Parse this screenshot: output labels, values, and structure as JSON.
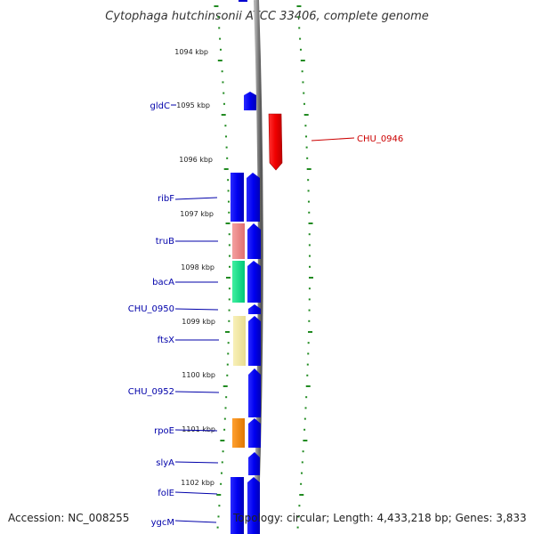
{
  "title": "Cytophaga hutchinsonii ATCC 33406, complete genome",
  "footer": {
    "accession": "Accession: NC_008255",
    "topology": "Topology: circular; Length: 4,433,218 bp; Genes: 3,833"
  },
  "colors": {
    "forward_strand": "#0000ff",
    "reverse_strand": "#ff0000",
    "tick": "#228b22",
    "label_blue": "#0000aa",
    "label_red": "#cc0000",
    "backbone": "#888888"
  },
  "ticks": [
    {
      "label": "1094 kbp"
    },
    {
      "label": "1095 kbp"
    },
    {
      "label": "1096 kbp"
    },
    {
      "label": "1097 kbp"
    },
    {
      "label": "1098 kbp"
    },
    {
      "label": "1099 kbp"
    },
    {
      "label": "1100 kbp"
    },
    {
      "label": "1101 kbp"
    },
    {
      "label": "1102 kbp"
    }
  ],
  "gene_labels": [
    {
      "name": "gldC",
      "strand": "forward"
    },
    {
      "name": "CHU_0946",
      "strand": "reverse"
    },
    {
      "name": "ribF",
      "strand": "forward"
    },
    {
      "name": "truB",
      "strand": "forward"
    },
    {
      "name": "bacA",
      "strand": "forward"
    },
    {
      "name": "CHU_0950",
      "strand": "forward"
    },
    {
      "name": "ftsX",
      "strand": "forward"
    },
    {
      "name": "CHU_0952",
      "strand": "forward"
    },
    {
      "name": "rpoE",
      "strand": "forward"
    },
    {
      "name": "slyA",
      "strand": "forward"
    },
    {
      "name": "folE",
      "strand": "forward"
    },
    {
      "name": "ygcM",
      "strand": "forward"
    }
  ],
  "cog_colors": [
    "#0000ff",
    "#f08080",
    "#00e08a",
    "#f0e6a0",
    "#ff8c00"
  ]
}
